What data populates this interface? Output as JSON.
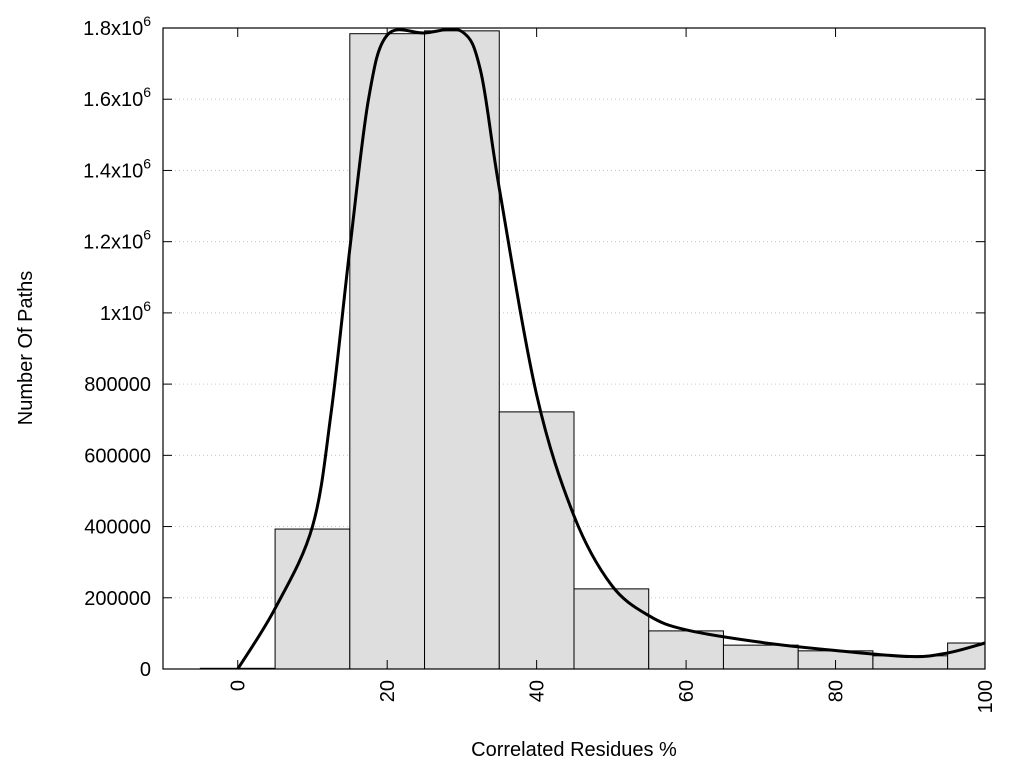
{
  "chart_data": {
    "type": "bar",
    "title": "",
    "xlabel": "Correlated Residues %",
    "ylabel": "Number Of Paths",
    "xlim": [
      -10,
      100
    ],
    "ylim": [
      0,
      1800000
    ],
    "grid": "horizontal dotted",
    "bar_width": 10,
    "bar_color": "#dedede",
    "line_color": "#000000",
    "x_ticks": [
      0,
      20,
      40,
      60,
      80,
      100
    ],
    "x_tick_labels": [
      "0",
      "20",
      "40",
      "60",
      "80",
      "100"
    ],
    "y_ticks": [
      0,
      200000,
      400000,
      600000,
      800000,
      1000000,
      1200000,
      1400000,
      1600000,
      1800000
    ],
    "y_tick_labels": [
      "0",
      "200000",
      "400000",
      "600000",
      "800000",
      "1x10^6",
      "1.2x10^6",
      "1.4x10^6",
      "1.6x10^6",
      "1.8x10^6"
    ],
    "bars": {
      "x": [
        0,
        10,
        20,
        30,
        40,
        50,
        60,
        70,
        80,
        90,
        100
      ],
      "values": [
        2000,
        393000,
        1784000,
        1792000,
        722000,
        225000,
        107000,
        67000,
        51000,
        37000,
        73000
      ]
    },
    "curve": {
      "x": [
        0,
        5,
        10,
        12.5,
        15,
        17.5,
        20,
        25,
        30,
        32.5,
        35,
        40,
        45,
        50,
        55,
        60,
        70,
        80,
        90,
        95,
        100
      ],
      "values": [
        0,
        170000,
        400000,
        720000,
        1180000,
        1600000,
        1780000,
        1786000,
        1790000,
        1680000,
        1350000,
        770000,
        430000,
        236000,
        150000,
        110000,
        75000,
        52000,
        35000,
        45000,
        73000
      ]
    }
  }
}
